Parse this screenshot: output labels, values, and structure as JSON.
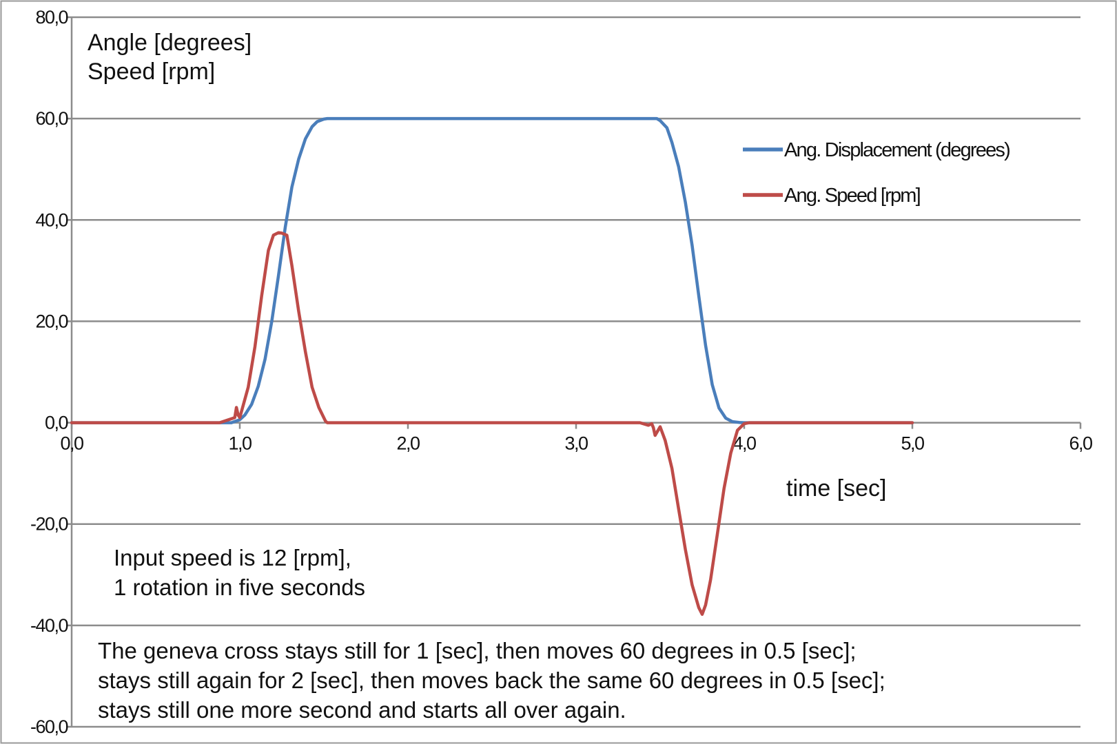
{
  "chart_data": {
    "type": "line",
    "title": "",
    "ylabel_lines": [
      "Angle [degrees]",
      "Speed [rpm]"
    ],
    "xlabel": "time [sec]",
    "xlim": [
      0,
      6
    ],
    "ylim": [
      -60,
      80
    ],
    "x_ticks": [
      0,
      1,
      2,
      3,
      4,
      5,
      6
    ],
    "x_tick_labels": [
      "0,0",
      "1,0",
      "2,0",
      "3,0",
      "4,0",
      "5,0",
      "6,0"
    ],
    "y_ticks": [
      80,
      60,
      40,
      20,
      0,
      -20,
      -40,
      -60
    ],
    "y_tick_labels": [
      "80,0",
      "60,0",
      "40,0",
      "20,0",
      "0,0",
      "-20,0",
      "-40,0",
      "-60,0"
    ],
    "grid": "horizontal",
    "legend_position": "top-right",
    "series": [
      {
        "name": "Ang. Displacement (degrees)",
        "color": "#4a7ebb",
        "x": [
          0,
          0.95,
          1.0,
          1.03,
          1.07,
          1.11,
          1.15,
          1.19,
          1.23,
          1.27,
          1.31,
          1.35,
          1.39,
          1.43,
          1.46,
          1.5,
          1.52,
          2.0,
          3.0,
          3.48,
          3.5,
          3.54,
          3.57,
          3.61,
          3.65,
          3.69,
          3.73,
          3.77,
          3.81,
          3.85,
          3.89,
          3.93,
          3.97,
          4.0,
          4.05,
          5.0
        ],
        "y": [
          0,
          0,
          0.6,
          1.5,
          3.6,
          7.2,
          12.5,
          20.0,
          29.0,
          38.5,
          46.5,
          52.0,
          56.0,
          58.4,
          59.4,
          59.9,
          60,
          60,
          60,
          60,
          59.6,
          58.2,
          55.3,
          50.5,
          43.5,
          35.0,
          25.0,
          15.3,
          7.5,
          2.9,
          0.9,
          0.2,
          0.05,
          0,
          0,
          0
        ]
      },
      {
        "name": "Ang. Speed [rpm]",
        "color": "#be4b48",
        "x": [
          0,
          0.88,
          0.97,
          0.98,
          0.99,
          1.0,
          1.05,
          1.09,
          1.13,
          1.17,
          1.2,
          1.23,
          1.25,
          1.28,
          1.31,
          1.35,
          1.39,
          1.43,
          1.47,
          1.51,
          1.52,
          2.0,
          3.0,
          3.38,
          3.43,
          3.45,
          3.46,
          3.47,
          3.5,
          3.53,
          3.57,
          3.61,
          3.65,
          3.69,
          3.73,
          3.75,
          3.77,
          3.8,
          3.84,
          3.88,
          3.92,
          3.96,
          4.0,
          4.03,
          4.07,
          5.0
        ],
        "y": [
          0,
          0,
          1.0,
          3.0,
          1.5,
          1.0,
          7.0,
          15.0,
          25.0,
          34.0,
          37.0,
          37.5,
          37.4,
          37.0,
          31.0,
          22.0,
          14.0,
          7.0,
          3.0,
          0.3,
          0,
          0,
          0,
          0,
          -0.5,
          -0.2,
          -1.0,
          -2.5,
          -0.8,
          -3.5,
          -9.0,
          -17.0,
          -25.0,
          -32.0,
          -36.5,
          -37.8,
          -36.0,
          -31.0,
          -22.0,
          -13.0,
          -6.0,
          -1.5,
          -0.2,
          0,
          0,
          0
        ]
      }
    ],
    "annotations": [
      {
        "lines": [
          "Input speed is 12 [rpm],",
          "1 rotation in five seconds"
        ]
      },
      {
        "lines": [
          "The geneva cross stays still for 1 [sec], then moves 60 degrees in 0.5 [sec];",
          "stays still again for 2 [sec], then moves back the same 60 degrees in 0.5 [sec];",
          "stays still one more second and starts all over again."
        ]
      }
    ]
  }
}
